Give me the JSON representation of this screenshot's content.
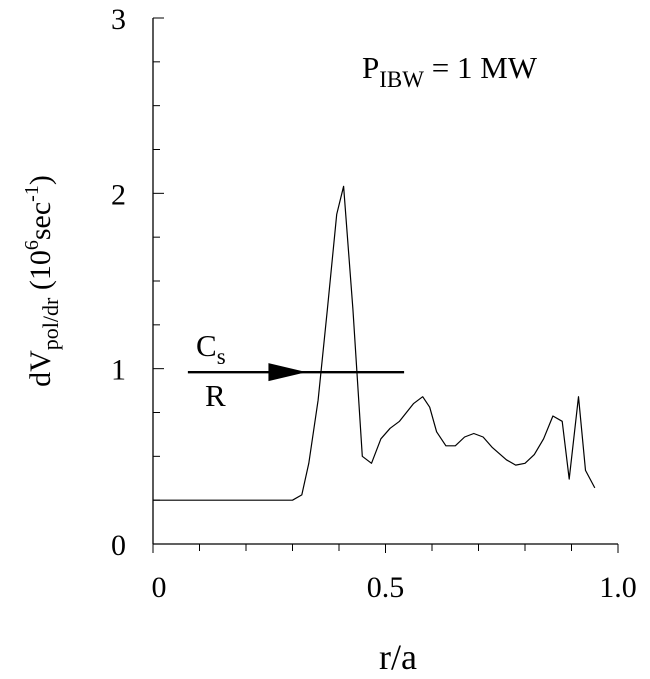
{
  "chart_data": {
    "type": "line",
    "title": "",
    "xlabel": "r/a",
    "ylabel": {
      "base": "dV",
      "sub": "pol/dr",
      "unit_open": " (10",
      "unit_sup": "6",
      "unit_mid": "sec",
      "unit_sup2": "-1",
      "unit_close": ")"
    },
    "xlim": [
      0,
      1.0
    ],
    "ylim": [
      0,
      3
    ],
    "x_ticks": [
      {
        "value": 0,
        "label": "0"
      },
      {
        "value": 0.5,
        "label": "0.5"
      },
      {
        "value": 1.0,
        "label": "1.0"
      }
    ],
    "y_ticks": [
      {
        "value": 0,
        "label": "0"
      },
      {
        "value": 1,
        "label": "1"
      },
      {
        "value": 2,
        "label": "2"
      },
      {
        "value": 3,
        "label": "3"
      }
    ],
    "x_minor_step": 0.1,
    "y_minor_step": 0.25,
    "grid": false,
    "annotation": {
      "main": "P",
      "sub": "IBW",
      "rest": " = 1 MW"
    },
    "arrow_annotation": {
      "label_top_main": "C",
      "label_top_sub": "s",
      "label_bottom": "R",
      "y": 0.98,
      "x_start": 0.075,
      "x_end": 0.54,
      "head_x": 0.33
    },
    "series": [
      {
        "x": [
          0.0,
          0.1,
          0.2,
          0.3,
          0.32,
          0.335,
          0.355,
          0.375,
          0.395,
          0.41,
          0.43,
          0.45,
          0.47,
          0.49,
          0.51,
          0.53,
          0.56,
          0.58,
          0.595,
          0.61,
          0.63,
          0.65,
          0.67,
          0.69,
          0.71,
          0.73,
          0.76,
          0.78,
          0.8,
          0.82,
          0.84,
          0.86,
          0.88,
          0.895,
          0.915,
          0.93,
          0.95
        ],
        "y": [
          0.25,
          0.25,
          0.25,
          0.25,
          0.28,
          0.46,
          0.82,
          1.34,
          1.88,
          2.04,
          1.34,
          0.5,
          0.46,
          0.6,
          0.66,
          0.7,
          0.8,
          0.84,
          0.78,
          0.64,
          0.56,
          0.56,
          0.61,
          0.63,
          0.61,
          0.55,
          0.48,
          0.45,
          0.46,
          0.51,
          0.6,
          0.73,
          0.7,
          0.37,
          0.84,
          0.42,
          0.32
        ]
      }
    ]
  }
}
